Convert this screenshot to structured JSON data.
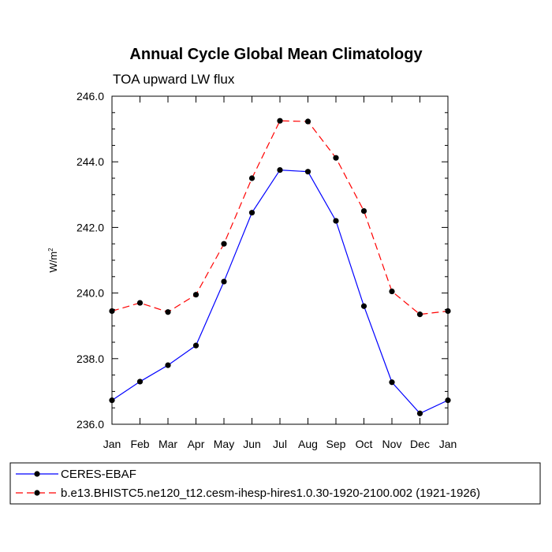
{
  "chart_data": {
    "type": "line",
    "title": "Annual Cycle Global Mean Climatology",
    "subtitle": "TOA upward LW flux",
    "xlabel": "",
    "ylabel": "W/m",
    "ylabel_sup": "2",
    "categories": [
      "Jan",
      "Feb",
      "Mar",
      "Apr",
      "May",
      "Jun",
      "Jul",
      "Aug",
      "Sep",
      "Oct",
      "Nov",
      "Dec",
      "Jan"
    ],
    "ylim": [
      236.0,
      246.0
    ],
    "yticks": [
      236.0,
      238.0,
      240.0,
      242.0,
      244.0,
      246.0
    ],
    "ytick_labels": [
      "236.0",
      "238.0",
      "240.0",
      "242.0",
      "244.0",
      "246.0"
    ],
    "grid": false,
    "legend_position": "bottom",
    "series": [
      {
        "name": "CERES-EBAF",
        "color": "#0000ff",
        "dash": "solid",
        "values": [
          236.73,
          237.3,
          237.8,
          238.4,
          240.35,
          242.45,
          243.75,
          243.7,
          242.2,
          239.6,
          237.28,
          236.33,
          236.73
        ]
      },
      {
        "name": "b.e13.BHISTC5.ne120_t12.cesm-ihesp-hires1.0.30-1920-2100.002 (1921-1926)",
        "color": "#ff0000",
        "dash": "dashed",
        "values": [
          239.45,
          239.7,
          239.42,
          239.95,
          241.5,
          243.5,
          245.25,
          245.23,
          244.12,
          242.5,
          240.05,
          239.35,
          239.45
        ]
      }
    ]
  }
}
